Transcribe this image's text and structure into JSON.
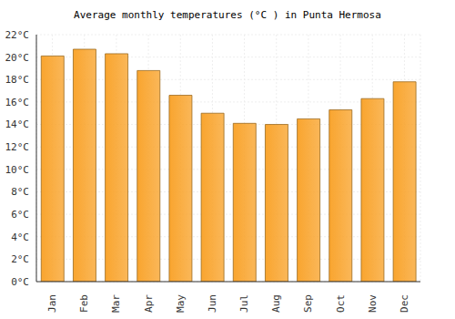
{
  "chart_data": {
    "type": "bar",
    "title": "Average monthly temperatures (°C ) in Punta Hermosa",
    "categories": [
      "Jan",
      "Feb",
      "Mar",
      "Apr",
      "May",
      "Jun",
      "Jul",
      "Aug",
      "Sep",
      "Oct",
      "Nov",
      "Dec"
    ],
    "values": [
      20.1,
      20.7,
      20.3,
      18.8,
      16.6,
      15.0,
      14.1,
      14.0,
      14.5,
      15.3,
      16.3,
      17.8
    ],
    "color": "#f9a52f",
    "ylim": [
      0,
      22
    ],
    "yticks": [
      {
        "value": 0,
        "label": "0°C"
      },
      {
        "value": 2,
        "label": "2°C"
      },
      {
        "value": 4,
        "label": "4°C"
      },
      {
        "value": 6,
        "label": "6°C"
      },
      {
        "value": 8,
        "label": "8°C"
      },
      {
        "value": 10,
        "label": "10°C"
      },
      {
        "value": 12,
        "label": "12°C"
      },
      {
        "value": 14,
        "label": "14°C"
      },
      {
        "value": 16,
        "label": "16°C"
      },
      {
        "value": 18,
        "label": "18°C"
      },
      {
        "value": 20,
        "label": "20°C"
      },
      {
        "value": 22,
        "label": "22°C"
      }
    ],
    "grid": true
  }
}
